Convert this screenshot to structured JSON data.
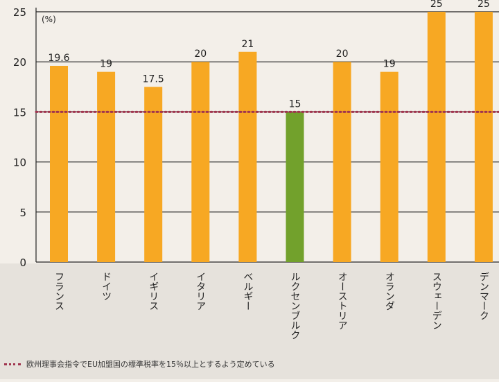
{
  "chart_data": {
    "type": "bar",
    "unit_label": "(%)",
    "categories": [
      "フランス",
      "ドイツ",
      "イギリス",
      "イタリア",
      "ベルギー",
      "ルクセンブルク",
      "オーストリア",
      "オランダ",
      "スウェーデン",
      "デンマーク"
    ],
    "values": [
      19.6,
      19,
      17.5,
      20,
      21,
      15,
      20,
      19,
      25,
      25
    ],
    "value_labels": [
      "19.6",
      "19",
      "17.5",
      "20",
      "21",
      "15",
      "20",
      "19",
      "25",
      "25"
    ],
    "highlight_index": 5,
    "ylim": [
      0,
      25
    ],
    "yticks": [
      0,
      5,
      10,
      15,
      20,
      25
    ],
    "grid": true,
    "reference_line": {
      "value": 15,
      "label": "欧州理事会指令でEU加盟国の標準税率を15％以上とするよう定めている"
    },
    "legend_placement": "bottom-left"
  },
  "colors": {
    "bar": "#f7a823",
    "bar_highlight": "#72a12c",
    "reference_line": "#a0344e",
    "grid": "#222222",
    "background": "#f3efe9",
    "label_area": "#e6e2dc"
  }
}
